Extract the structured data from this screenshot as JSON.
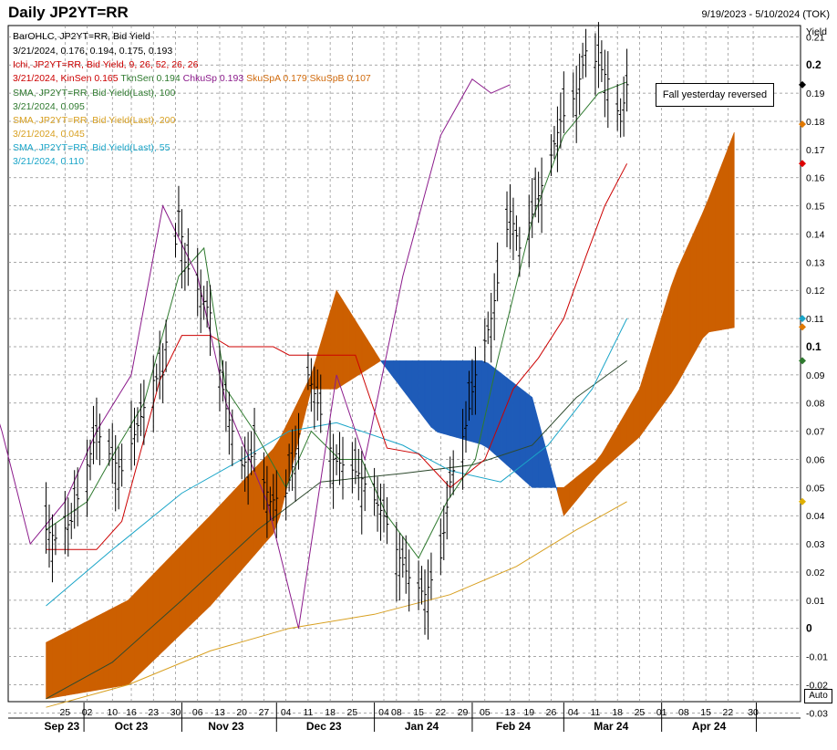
{
  "header": {
    "title": "Daily JP2YT=RR",
    "date_range": "9/19/2023 - 5/10/2024 (TOK)"
  },
  "legend": [
    {
      "text": "BarOHLC, JP2YT=RR, Bid Yield",
      "color": "#000000"
    },
    {
      "text": "3/21/2024, 0.176, 0.194, 0.175, 0.193",
      "color": "#000000"
    },
    {
      "text": "Ichi, JP2YT=RR, Bid Yield,  9, 26, 52, 26, 26",
      "color": "#cc0000"
    },
    {
      "text": "SMA, JP2YT=RR, Bid Yield(Last),  100",
      "color": "#2f7a2f"
    },
    {
      "text": "3/21/2024, 0.095",
      "color": "#2f7a2f"
    },
    {
      "text": "SMA, JP2YT=RR, Bid Yield(Last),  200",
      "color": "#d8a021"
    },
    {
      "text": "3/21/2024, 0.045",
      "color": "#d8a021"
    },
    {
      "text": "SMA, JP2YT=RR, Bid Yield(Last),  55",
      "color": "#1aa5c8"
    },
    {
      "text": "3/21/2024, 0.110",
      "color": "#1aa5c8"
    }
  ],
  "ichi_values": [
    {
      "text": "3/21/2024, ",
      "color": "#cc0000"
    },
    {
      "text": "KinSen 0.165",
      "color": "#cc0000"
    },
    {
      "text": "TknSen 0.194",
      "color": "#2f7a2f"
    },
    {
      "text": "ChkuSp 0.193",
      "color": "#8b1a8b"
    },
    {
      "text": "SkuSpA 0.179",
      "color": "#d06a0c"
    },
    {
      "text": "SkuSpB 0.107",
      "color": "#d06a0c"
    }
  ],
  "annotation": "Fall yesterday reversed",
  "auto_label": "Auto",
  "axis": {
    "y_title": "Yield",
    "y_ticks": [
      "0.21",
      "0.2",
      "0.19",
      "0.18",
      "0.17",
      "0.16",
      "0.15",
      "0.14",
      "0.13",
      "0.12",
      "0.11",
      "0.1",
      "0.09",
      "0.08",
      "0.07",
      "0.06",
      "0.05",
      "0.04",
      "0.03",
      "0.02",
      "0.01",
      "0",
      "-0.01",
      "-0.02",
      "-0.03"
    ],
    "x_days": [
      "25",
      "02",
      "10",
      "16",
      "23",
      "30",
      "06",
      "13",
      "20",
      "27",
      "04",
      "11",
      "18",
      "25",
      "04",
      "08",
      "15",
      "22",
      "29",
      "05",
      "13",
      "19",
      "26",
      "04",
      "11",
      "18",
      "25",
      "01",
      "08",
      "15",
      "22",
      "30"
    ],
    "x_months": [
      "Sep 23",
      "Oct 23",
      "Nov 23",
      "Dec 23",
      "Jan 24",
      "Feb 24",
      "Mar 24",
      "Apr 24"
    ]
  },
  "colors": {
    "bull_cloud": "#cc5f00",
    "bear_cloud": "#1e5bb8",
    "kijun": "#cc0000",
    "tenkan": "#2f7a2f",
    "chikou": "#8b1a8b",
    "sma100": "#2e4a2e",
    "sma200": "#d8a021",
    "sma55": "#1aa5c8",
    "bars": "#000000"
  },
  "markers": [
    {
      "value": 0.193,
      "color": "#000000"
    },
    {
      "value": 0.179,
      "color": "#e07800"
    },
    {
      "value": 0.165,
      "color": "#dd0000"
    },
    {
      "value": 0.11,
      "color": "#1aa5c8"
    },
    {
      "value": 0.107,
      "color": "#e07800"
    },
    {
      "value": 0.095,
      "color": "#2f7a2f"
    },
    {
      "value": 0.045,
      "color": "#e0b000"
    }
  ],
  "chart_data": {
    "type": "ohlc",
    "title": "Daily JP2YT=RR",
    "ylabel": "Yield",
    "ylim": [
      -0.026,
      0.214
    ],
    "x_range": [
      "2023-09-19",
      "2024-05-10"
    ],
    "grid": true,
    "last_bar": {
      "date": "3/21/2024",
      "open": 0.176,
      "high": 0.194,
      "low": 0.175,
      "close": 0.193
    },
    "close_series": {
      "dates": [
        "2023-09-19",
        "2023-09-22",
        "2023-09-27",
        "2023-10-02",
        "2023-10-05",
        "2023-10-10",
        "2023-10-13",
        "2023-10-18",
        "2023-10-23",
        "2023-10-26",
        "2023-10-31",
        "2023-11-02",
        "2023-11-07",
        "2023-11-10",
        "2023-11-15",
        "2023-11-20",
        "2023-11-24",
        "2023-11-29",
        "2023-12-04",
        "2023-12-07",
        "2023-12-11",
        "2023-12-14",
        "2023-12-19",
        "2023-12-22",
        "2023-12-27",
        "2024-01-04",
        "2024-01-09",
        "2024-01-12",
        "2024-01-17",
        "2024-01-22",
        "2024-01-25",
        "2024-01-30",
        "2024-02-02",
        "2024-02-07",
        "2024-02-13",
        "2024-02-16",
        "2024-02-21",
        "2024-02-26",
        "2024-02-29",
        "2024-03-05",
        "2024-03-08",
        "2024-03-12",
        "2024-03-15",
        "2024-03-19",
        "2024-03-21"
      ],
      "values": [
        0.035,
        0.032,
        0.038,
        0.058,
        0.07,
        0.06,
        0.056,
        0.072,
        0.088,
        0.09,
        0.148,
        0.13,
        0.118,
        0.112,
        0.078,
        0.058,
        0.062,
        0.045,
        0.048,
        0.062,
        0.09,
        0.08,
        0.06,
        0.058,
        0.055,
        0.04,
        0.025,
        0.018,
        0.012,
        0.025,
        0.052,
        0.072,
        0.09,
        0.11,
        0.148,
        0.135,
        0.15,
        0.168,
        0.18,
        0.19,
        0.205,
        0.2,
        0.195,
        0.18,
        0.193
      ]
    },
    "kijun": {
      "dates": [
        "2023-09-19",
        "2023-10-05",
        "2023-10-13",
        "2023-10-25",
        "2023-11-01",
        "2023-11-10",
        "2023-11-16",
        "2023-11-30",
        "2023-12-05",
        "2023-12-26",
        "2024-01-05",
        "2024-01-15",
        "2024-01-25",
        "2024-02-05",
        "2024-02-14",
        "2024-02-22",
        "2024-03-01",
        "2024-03-08",
        "2024-03-14",
        "2024-03-21"
      ],
      "values": [
        0.028,
        0.028,
        0.038,
        0.088,
        0.104,
        0.104,
        0.1,
        0.1,
        0.097,
        0.097,
        0.064,
        0.062,
        0.05,
        0.06,
        0.085,
        0.096,
        0.11,
        0.132,
        0.15,
        0.165
      ]
    },
    "tenkan": {
      "dates": [
        "2023-09-19",
        "2023-10-02",
        "2023-10-12",
        "2023-10-20",
        "2023-10-31",
        "2023-11-08",
        "2023-11-15",
        "2023-11-24",
        "2023-12-04",
        "2023-12-12",
        "2023-12-21",
        "2023-12-28",
        "2024-01-05",
        "2024-01-15",
        "2024-01-24",
        "2024-02-02",
        "2024-02-09",
        "2024-02-20",
        "2024-03-01",
        "2024-03-12",
        "2024-03-21"
      ],
      "values": [
        0.035,
        0.045,
        0.065,
        0.08,
        0.125,
        0.135,
        0.085,
        0.07,
        0.05,
        0.07,
        0.06,
        0.06,
        0.04,
        0.025,
        0.045,
        0.06,
        0.095,
        0.145,
        0.175,
        0.19,
        0.194
      ]
    },
    "chikou": {
      "dates": [
        "2023-08-10",
        "2023-08-15",
        "2023-08-25",
        "2023-09-05",
        "2023-09-14",
        "2023-09-25",
        "2023-10-05",
        "2023-10-16",
        "2023-10-26",
        "2023-11-06",
        "2023-11-15",
        "2023-11-28",
        "2023-12-08",
        "2023-12-20",
        "2023-12-29",
        "2024-01-10",
        "2024-01-22",
        "2024-02-01",
        "2024-02-07",
        "2024-02-13"
      ],
      "values": [
        0.085,
        0.16,
        0.11,
        0.07,
        0.03,
        0.045,
        0.07,
        0.09,
        0.15,
        0.125,
        0.08,
        0.045,
        0.0,
        0.09,
        0.06,
        0.125,
        0.175,
        0.195,
        0.19,
        0.193
      ]
    },
    "senkou_a": {
      "dates": [
        "2023-09-19",
        "2023-10-15",
        "2023-11-10",
        "2023-12-01",
        "2023-12-12",
        "2023-12-20",
        "2024-01-03",
        "2024-01-20",
        "2024-02-05",
        "2024-02-20",
        "2024-03-01",
        "2024-03-12",
        "2024-03-25",
        "2024-04-05",
        "2024-04-15",
        "2024-04-25"
      ],
      "values": [
        -0.005,
        0.01,
        0.04,
        0.065,
        0.09,
        0.12,
        0.095,
        0.07,
        0.065,
        0.05,
        0.05,
        0.06,
        0.085,
        0.125,
        0.15,
        0.179
      ]
    },
    "senkou_b": {
      "dates": [
        "2023-09-19",
        "2023-10-15",
        "2023-11-10",
        "2023-12-01",
        "2023-12-12",
        "2023-12-20",
        "2024-01-03",
        "2024-01-20",
        "2024-02-05",
        "2024-02-20",
        "2024-03-01",
        "2024-03-12",
        "2024-03-25",
        "2024-04-05",
        "2024-04-15",
        "2024-04-25"
      ],
      "values": [
        -0.025,
        -0.02,
        0.008,
        0.035,
        0.085,
        0.085,
        0.095,
        0.095,
        0.095,
        0.082,
        0.04,
        0.055,
        0.068,
        0.085,
        0.105,
        0.107
      ]
    },
    "sma55": {
      "dates": [
        "2023-09-19",
        "2023-10-10",
        "2023-11-01",
        "2023-11-20",
        "2023-12-05",
        "2023-12-20",
        "2024-01-10",
        "2024-01-25",
        "2024-02-10",
        "2024-02-25",
        "2024-03-10",
        "2024-03-21"
      ],
      "values": [
        0.008,
        0.028,
        0.048,
        0.06,
        0.07,
        0.073,
        0.065,
        0.056,
        0.052,
        0.065,
        0.085,
        0.11
      ]
    },
    "sma100": {
      "dates": [
        "2023-09-19",
        "2023-10-10",
        "2023-11-01",
        "2023-11-25",
        "2023-12-15",
        "2024-01-10",
        "2024-02-01",
        "2024-02-20",
        "2024-03-05",
        "2024-03-21"
      ],
      "values": [
        -0.025,
        -0.012,
        0.01,
        0.035,
        0.052,
        0.055,
        0.058,
        0.065,
        0.082,
        0.095
      ]
    },
    "sma200": {
      "dates": [
        "2023-09-19",
        "2023-10-15",
        "2023-11-10",
        "2023-12-05",
        "2024-01-01",
        "2024-01-25",
        "2024-02-15",
        "2024-03-05",
        "2024-03-21"
      ],
      "values": [
        -0.028,
        -0.02,
        -0.008,
        0.0,
        0.005,
        0.012,
        0.022,
        0.035,
        0.045
      ]
    }
  }
}
